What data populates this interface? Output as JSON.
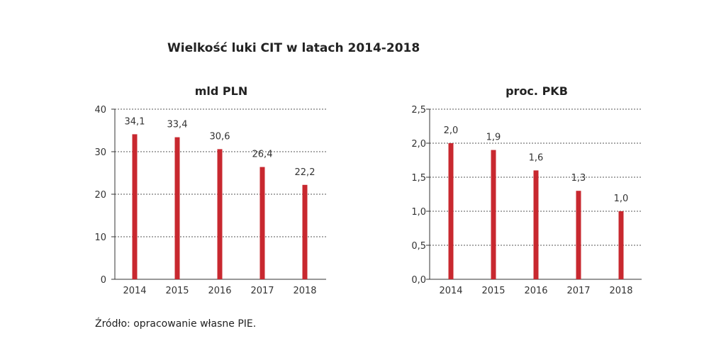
{
  "title": "Wielkość luki CIT w latach 2014-2018",
  "source": "Źródło: opracowanie własne PIE.",
  "colors": {
    "bar": "#c8282f"
  },
  "chart_data": [
    {
      "type": "bar",
      "title": "mld PLN",
      "categories": [
        "2014",
        "2015",
        "2016",
        "2017",
        "2018"
      ],
      "values": [
        34.1,
        33.4,
        30.6,
        26.4,
        22.2
      ],
      "value_labels": [
        "34,1",
        "33,4",
        "30,6",
        "26,4",
        "22,2"
      ],
      "yticks": [
        0,
        10,
        20,
        30,
        40
      ],
      "ytick_labels": [
        "0",
        "10",
        "20",
        "30",
        "40"
      ],
      "ylim": [
        0,
        40
      ],
      "xlabel": "",
      "ylabel": ""
    },
    {
      "type": "bar",
      "title": "proc. PKB",
      "categories": [
        "2014",
        "2015",
        "2016",
        "2017",
        "2018"
      ],
      "values": [
        2.0,
        1.9,
        1.6,
        1.3,
        1.0
      ],
      "value_labels": [
        "2,0",
        "1,9",
        "1,6",
        "1,3",
        "1,0"
      ],
      "yticks": [
        0,
        0.5,
        1.0,
        1.5,
        2.0,
        2.5
      ],
      "ytick_labels": [
        "0,0",
        "0,5",
        "1,0",
        "1,5",
        "2,0",
        "2,5"
      ],
      "ylim": [
        0,
        2.5
      ],
      "xlabel": "",
      "ylabel": ""
    }
  ]
}
